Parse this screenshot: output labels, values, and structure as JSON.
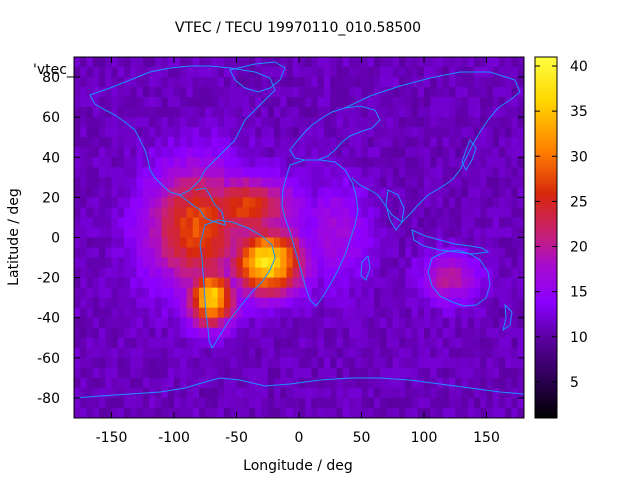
{
  "chart_data": {
    "type": "heatmap",
    "title": "VTEC / TECU 19970110_010.58500",
    "series_label": "'vtec_",
    "xlabel": "Longitude / deg",
    "ylabel": "Latitude / deg",
    "xlim": [
      -180,
      180
    ],
    "ylim": [
      -90,
      90
    ],
    "xticks": [
      "-150",
      "-100",
      "-50",
      "0",
      "50",
      "100",
      "150"
    ],
    "yticks": [
      "-80",
      "-60",
      "-40",
      "-20",
      "0",
      "20",
      "40",
      "60",
      "80"
    ],
    "colorbar": {
      "range": [
        1,
        41
      ],
      "ticks": [
        "5",
        "10",
        "15",
        "20",
        "25",
        "30",
        "35",
        "40"
      ]
    },
    "background_level": 11,
    "hotspots": [
      {
        "lon": -25,
        "lat": -12,
        "value": 38,
        "rlon": 28,
        "rlat": 16
      },
      {
        "lon": -70,
        "lat": -30,
        "value": 36,
        "rlon": 18,
        "rlat": 14
      },
      {
        "lon": -80,
        "lat": 5,
        "value": 28,
        "rlon": 40,
        "rlat": 30
      },
      {
        "lon": -45,
        "lat": 15,
        "value": 27,
        "rlon": 40,
        "rlat": 15
      },
      {
        "lon": 120,
        "lat": -20,
        "value": 20,
        "rlon": 22,
        "rlat": 12
      },
      {
        "lon": 30,
        "lat": 2,
        "value": 17,
        "rlon": 25,
        "rlat": 25
      }
    ],
    "grid": false,
    "colors": {
      "colormap": [
        "#000000",
        "#3a006e",
        "#6a00b0",
        "#8c00ff",
        "#c51f7e",
        "#e63c14",
        "#ff7f00",
        "#ffd700",
        "#ffff40"
      ],
      "coastline": "#1e90ff"
    }
  }
}
